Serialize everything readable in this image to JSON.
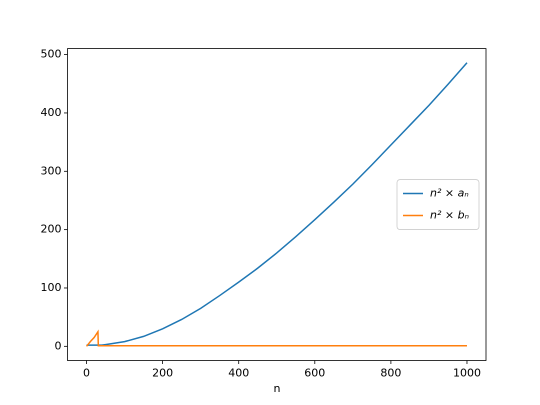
{
  "chart_data": {
    "type": "line",
    "x_label": "n",
    "x": [
      0,
      10,
      20,
      30,
      31,
      40,
      50,
      100,
      150,
      200,
      250,
      300,
      350,
      400,
      450,
      500,
      550,
      600,
      650,
      700,
      750,
      800,
      850,
      900,
      950,
      1000
    ],
    "series": [
      {
        "name": "n² × aₙ",
        "color": "#1f77b4",
        "values": [
          2,
          2,
          2,
          2,
          2,
          2,
          3,
          8,
          17,
          30,
          46,
          65,
          87,
          110,
          134,
          160,
          188,
          217,
          247,
          278,
          311,
          345,
          379,
          413,
          449,
          486
        ]
      },
      {
        "name": "n² × bₙ",
        "color": "#ff7f0e",
        "values": [
          0,
          8,
          15,
          25,
          1,
          1,
          1,
          1,
          1,
          1,
          1,
          1,
          1,
          1,
          1,
          1,
          1,
          1,
          1,
          1,
          1,
          1,
          1,
          1,
          1,
          1
        ]
      }
    ],
    "xlim": [
      -50,
      1050
    ],
    "xticks": [
      0,
      200,
      400,
      600,
      800,
      1000
    ],
    "ylim": [
      -24.3,
      510.3
    ],
    "yticks": [
      0,
      100,
      200,
      300,
      400,
      500
    ],
    "legend": "center right"
  }
}
